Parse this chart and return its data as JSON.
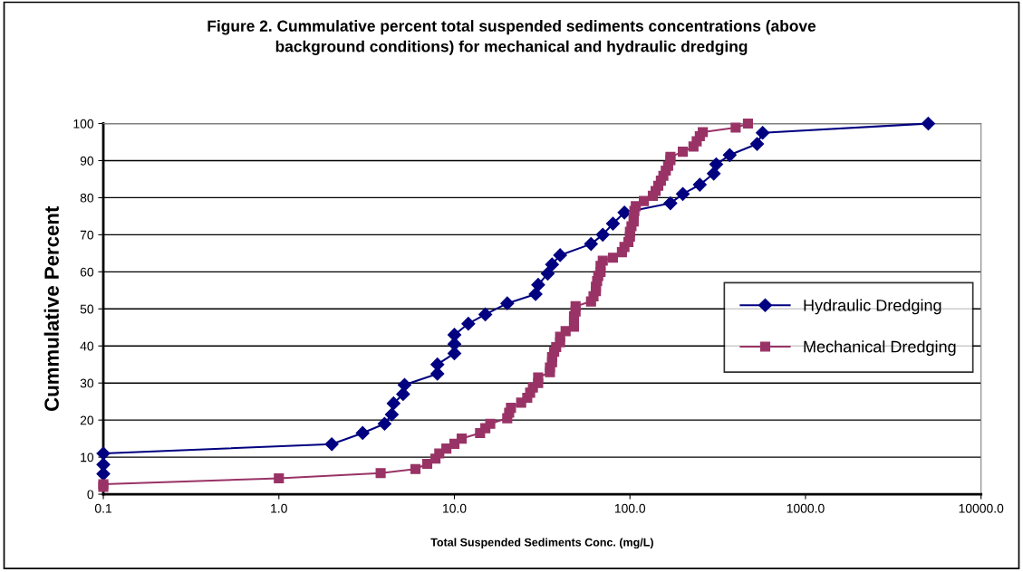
{
  "chart_data": {
    "type": "line",
    "title": "Figure 2. Cummulative percent total suspended sediments concentrations (above\nbackground conditions) for mechanical and hydraulic dredging",
    "xlabel": "Total Suspended Sediments Conc. (mg/L)",
    "ylabel": "Cummulative Percent",
    "log": "x",
    "grid": "y",
    "legend": "right",
    "xlim": [
      0.1,
      10000
    ],
    "ylim": [
      0,
      100
    ],
    "xticks": [
      {
        "value": 0.1,
        "label": "0.1"
      },
      {
        "value": 1,
        "label": "1.0"
      },
      {
        "value": 10,
        "label": "10.0"
      },
      {
        "value": 100,
        "label": "100.0"
      },
      {
        "value": 1000,
        "label": "1000.0"
      },
      {
        "value": 10000,
        "label": "10000.0"
      }
    ],
    "yticks": [
      0,
      10,
      20,
      30,
      40,
      50,
      60,
      70,
      80,
      90,
      100
    ],
    "series": [
      {
        "name": "Hydraulic Dredging",
        "color": "#000080",
        "marker": "diamond",
        "x": [
          0.1,
          0.1,
          0.1,
          2,
          3,
          4,
          4.4,
          4.5,
          5.1,
          5.2,
          8,
          8,
          10,
          10,
          10,
          12,
          15,
          20,
          29,
          30,
          34,
          36,
          40,
          60,
          70,
          80,
          93,
          170,
          200,
          250,
          300,
          310,
          370,
          530,
          570,
          5000
        ],
        "values": [
          5.5,
          8,
          11,
          13.5,
          16.5,
          19,
          21.5,
          24.5,
          27,
          29.5,
          32.5,
          35,
          38,
          40.5,
          43,
          46,
          48.5,
          51.5,
          54,
          56.5,
          59.5,
          62,
          64.5,
          67.5,
          70,
          73,
          76,
          78.5,
          81,
          83.5,
          86.5,
          89,
          91.5,
          94.5,
          97.5,
          100
        ]
      },
      {
        "name": "Mechanical Dredging",
        "color": "#993366",
        "marker": "square",
        "x": [
          0.1,
          0.1,
          1.0,
          3.8,
          6,
          7,
          7.8,
          8.2,
          9,
          10,
          11,
          14,
          15,
          16,
          20,
          20.5,
          21,
          24,
          26,
          27,
          28,
          30,
          30,
          35,
          35,
          36,
          36,
          37,
          38,
          40,
          40,
          43,
          48,
          48,
          48,
          49,
          49,
          60,
          62,
          64,
          64,
          65,
          66,
          68,
          68,
          70,
          80,
          90,
          93,
          98,
          100,
          100,
          102,
          105,
          105,
          106,
          108,
          120,
          135,
          140,
          145,
          150,
          155,
          160,
          165,
          170,
          170,
          200,
          230,
          240,
          250,
          260,
          400,
          470
        ],
        "values": [
          2,
          2.7,
          4.3,
          5.7,
          6.8,
          8.2,
          9.6,
          11,
          12.3,
          13.6,
          15,
          16.5,
          17.8,
          19,
          20.5,
          22,
          23.3,
          24.7,
          26,
          27.4,
          28.8,
          30,
          31.5,
          32.9,
          34.2,
          35.6,
          37,
          38.4,
          39.7,
          41,
          42.5,
          44,
          45.2,
          46.6,
          48,
          49.3,
          50.7,
          52,
          53.4,
          54.8,
          56,
          57.5,
          58.9,
          60,
          61.6,
          63,
          63.8,
          65.3,
          66.7,
          68,
          69.5,
          70.8,
          72.3,
          73.6,
          75,
          76.4,
          77.7,
          79.1,
          80.5,
          81.8,
          83.2,
          84.6,
          85.9,
          87.3,
          88.6,
          90.1,
          91,
          92.4,
          93.8,
          95.2,
          96.6,
          97.7,
          98.9,
          100
        ]
      }
    ]
  }
}
